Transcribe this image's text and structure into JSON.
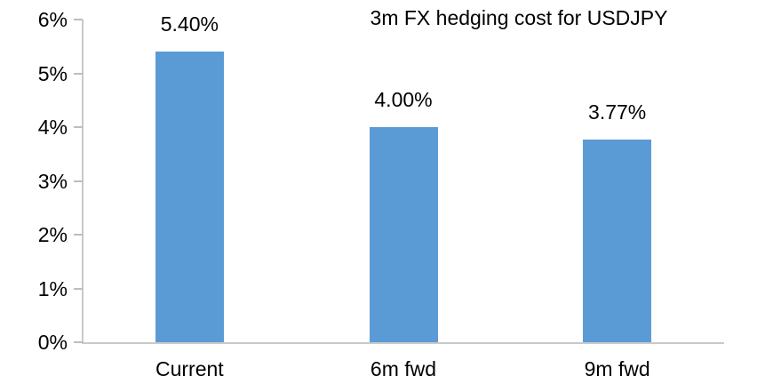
{
  "chart_data": {
    "type": "bar",
    "title": "3m FX hedging cost for USDJPY",
    "categories": [
      "Current",
      "6m fwd",
      "9m fwd"
    ],
    "values": [
      5.4,
      4.0,
      3.77
    ],
    "data_labels": [
      "5.40%",
      "4.00%",
      "3.77%"
    ],
    "y_tick_labels": [
      "0%",
      "1%",
      "2%",
      "3%",
      "4%",
      "5%",
      "6%"
    ],
    "ylim": [
      0,
      6
    ],
    "xlabel": "",
    "ylabel": "",
    "grid": false,
    "legend": "none",
    "colors": {
      "bar": "#5B9BD5",
      "axis_line": "#C9C9C9",
      "tick": "#BDBDBD",
      "text": "#000000",
      "background": "#FFFFFF"
    }
  }
}
